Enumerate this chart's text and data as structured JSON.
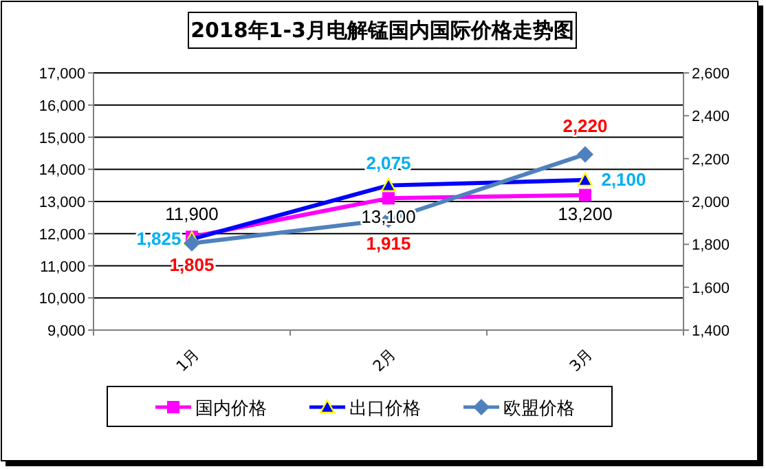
{
  "chart_data": {
    "type": "line",
    "title": "2018年1-3月电解锰国内国际价格走势图",
    "categories": [
      "1月",
      "2月",
      "3月"
    ],
    "series": [
      {
        "name": "国内价格",
        "color": "#ff00ff",
        "values": [
          11900,
          13100,
          13200
        ],
        "value_labels": [
          "11,900",
          "13,100",
          "13,200"
        ],
        "marker": "square"
      },
      {
        "name": "出口价格",
        "color": "#0000ff",
        "values": [
          1825,
          2075,
          2100
        ],
        "value_labels": [
          "1,825",
          "2,075",
          "2,100"
        ],
        "axis": "y2",
        "marker": "triangle"
      },
      {
        "name": "欧盟价格",
        "color": "#4f81bd",
        "values": [
          1805,
          1915,
          2220
        ],
        "value_labels": [
          "1,805",
          "1,915",
          "2,220"
        ],
        "axis": "y2",
        "marker": "diamond"
      }
    ],
    "ylim": [
      9000,
      17000
    ],
    "yticks": [
      {
        "value": 9000,
        "label": "9,000"
      },
      {
        "value": 10000,
        "label": "10,000"
      },
      {
        "value": 11000,
        "label": "11,000"
      },
      {
        "value": 12000,
        "label": "12,000"
      },
      {
        "value": 13000,
        "label": "13,000"
      },
      {
        "value": 14000,
        "label": "14,000"
      },
      {
        "value": 15000,
        "label": "15,000"
      },
      {
        "value": 16000,
        "label": "16,000"
      },
      {
        "value": 17000,
        "label": "17,000"
      }
    ],
    "y2lim": [
      1400,
      2600
    ],
    "y2ticks": [
      {
        "value": 1400,
        "label": "1,400"
      },
      {
        "value": 1600,
        "label": "1,600"
      },
      {
        "value": 1800,
        "label": "1,800"
      },
      {
        "value": 2000,
        "label": "2,000"
      },
      {
        "value": 2200,
        "label": "2,200"
      },
      {
        "value": 2400,
        "label": "2,400"
      },
      {
        "value": 2600,
        "label": "2,600"
      }
    ],
    "grid": "y",
    "legend": "bottom"
  }
}
